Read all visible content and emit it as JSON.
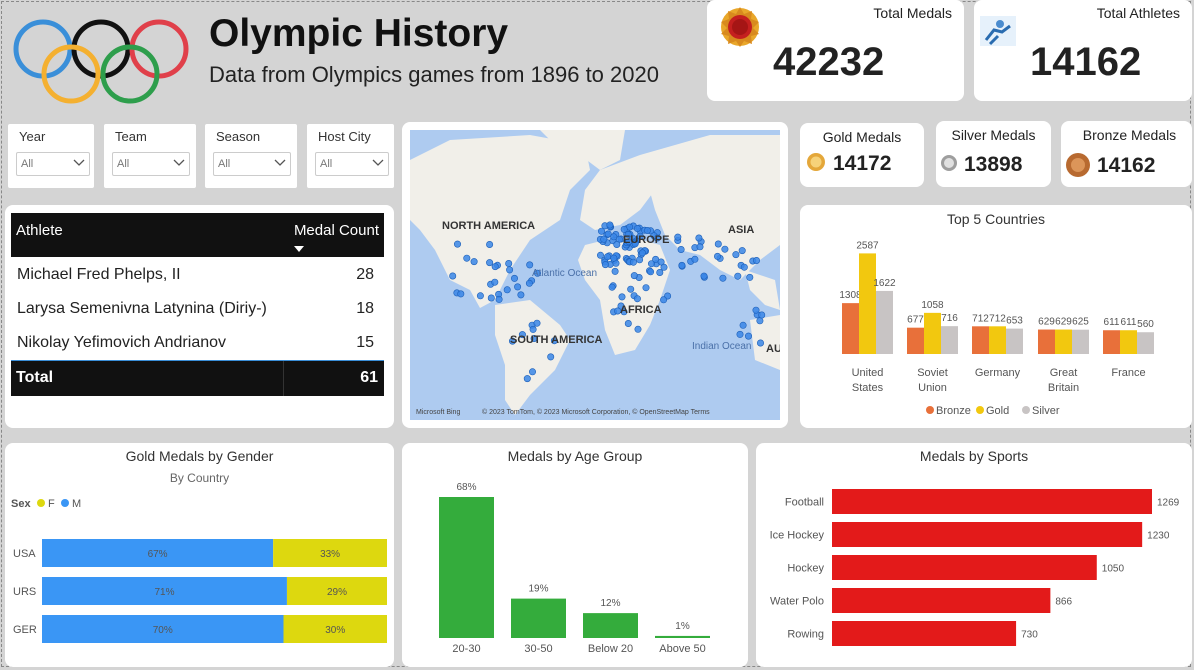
{
  "header": {
    "title": "Olympic History",
    "subtitle": "Data from Olympics games from 1896 to 2020"
  },
  "kpis": {
    "total_medals": {
      "label": "Total Medals",
      "value": "42232"
    },
    "total_athletes": {
      "label": "Total Athletes",
      "value": "14162"
    }
  },
  "slicers": [
    {
      "label": "Year",
      "value": "All"
    },
    {
      "label": "Team",
      "value": "All"
    },
    {
      "label": "Season",
      "value": "All"
    },
    {
      "label": "Host City",
      "value": "All"
    }
  ],
  "medal_kpis": {
    "gold": {
      "label": "Gold Medals",
      "value": "14172"
    },
    "silver": {
      "label": "Silver Medals",
      "value": "13898"
    },
    "bronze": {
      "label": "Bronze Medals",
      "value": "14162"
    }
  },
  "athlete_table": {
    "col_athlete": "Athlete",
    "col_medals": "Medal Count",
    "rows": [
      {
        "name": "Michael Fred Phelps, II",
        "count": "28"
      },
      {
        "name": "Larysa Semenivna Latynina (Diriy-)",
        "count": "18"
      },
      {
        "name": "Nikolay Yefimovich Andrianov",
        "count": "15"
      }
    ],
    "total_label": "Total",
    "total_value": "61"
  },
  "map": {
    "labels": [
      "NORTH AMERICA",
      "EUROPE",
      "ASIA",
      "Atlantic Ocean",
      "AFRICA",
      "SOUTH AMERICA",
      "Indian Ocean",
      "AU"
    ],
    "attribution": "© 2023 TomTom, © 2023 Microsoft Corporation, © OpenStreetMap  Terms",
    "brand": "Microsoft Bing"
  },
  "colors": {
    "bronze": "#e8703a",
    "gold": "#f2c80f",
    "silver": "#c8c4c4",
    "female": "#ddd80f",
    "male": "#3a96f5",
    "age_bar": "#34ac3c",
    "sports_bar": "#e31a1a"
  },
  "chart_data": [
    {
      "type": "bar",
      "title": "Top 5 Countries",
      "categories": [
        [
          "United",
          "States"
        ],
        [
          "Soviet",
          "Union"
        ],
        [
          "Germany"
        ],
        [
          "Great",
          "Britain"
        ],
        [
          "France"
        ]
      ],
      "series": [
        {
          "name": "Bronze",
          "values": [
            1308,
            677,
            712,
            629,
            611
          ]
        },
        {
          "name": "Gold",
          "values": [
            2587,
            1058,
            712,
            629,
            611
          ]
        },
        {
          "name": "Silver",
          "values": [
            1622,
            716,
            653,
            625,
            560
          ]
        }
      ],
      "ylim": [
        0,
        2700
      ],
      "legend": "bottom"
    },
    {
      "type": "bar",
      "orientation": "horizontal",
      "stacked": "percent",
      "title": "Gold Medals by Gender",
      "subtitle": "By Country",
      "legend_title": "Sex",
      "categories": [
        "USA",
        "URS",
        "GER"
      ],
      "series": [
        {
          "name": "M",
          "values": [
            67,
            71,
            70
          ]
        },
        {
          "name": "F",
          "values": [
            33,
            29,
            30
          ]
        }
      ],
      "legend_order": [
        "F",
        "M"
      ],
      "legend": "top-left"
    },
    {
      "type": "bar",
      "title": "Medals by Age Group",
      "categories": [
        "20-30",
        "30-50",
        "Below 20",
        "Above 50"
      ],
      "values": [
        68,
        19,
        12,
        1
      ],
      "unit": "%",
      "ylim": [
        0,
        70
      ]
    },
    {
      "type": "bar",
      "orientation": "horizontal",
      "title": "Medals by Sports",
      "categories": [
        "Football",
        "Ice Hockey",
        "Hockey",
        "Water Polo",
        "Rowing"
      ],
      "values": [
        1269,
        1230,
        1050,
        866,
        730
      ],
      "xlim": [
        0,
        1269
      ]
    }
  ]
}
